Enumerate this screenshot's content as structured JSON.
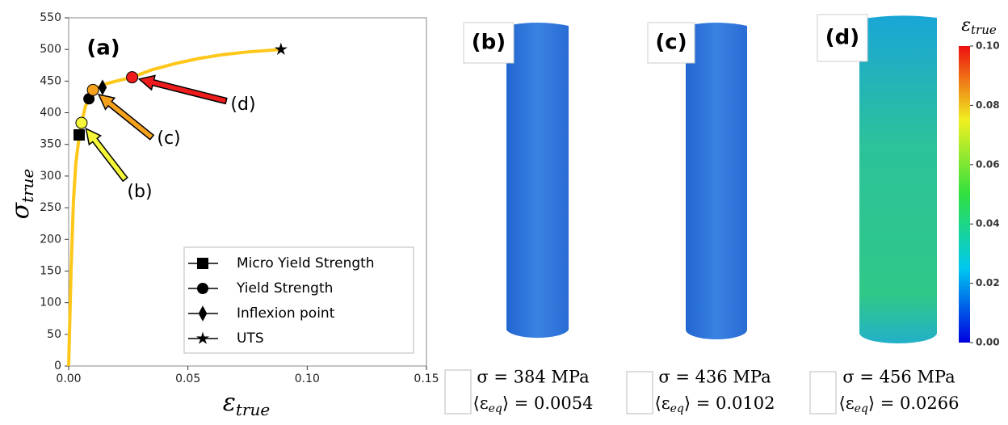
{
  "chart_data": {
    "type": "line",
    "panel_label": "(a)",
    "y_label": {
      "symbol": "σ",
      "subscript": "true"
    },
    "x_label": {
      "symbol": "ε",
      "subscript": "true"
    },
    "xlim": [
      0,
      0.15
    ],
    "xticks": [
      {
        "value": 0,
        "label": "0.00"
      },
      {
        "value": 0.05,
        "label": "0.05"
      },
      {
        "value": 0.1,
        "label": "0.10"
      },
      {
        "value": 0.15,
        "label": "0.15"
      }
    ],
    "ylim": [
      0,
      550
    ],
    "yticks": [
      0,
      50,
      100,
      150,
      200,
      250,
      300,
      350,
      400,
      450,
      500,
      550
    ],
    "curve": {
      "color": "#ffc71a",
      "x": [
        0,
        0.001,
        0.002,
        0.003,
        0.004,
        0.005,
        0.0054,
        0.007,
        0.0102,
        0.015,
        0.02,
        0.0266,
        0.035,
        0.045,
        0.055,
        0.065,
        0.075,
        0.089
      ],
      "y": [
        0,
        150,
        260,
        320,
        350,
        372,
        384,
        410,
        436,
        445,
        450,
        456,
        468,
        478,
        486,
        492,
        496,
        500
      ]
    },
    "markers": [
      {
        "name": "Micro Yield Strength",
        "shape": "square",
        "x": 0.0044,
        "y": 365
      },
      {
        "name": "Yield Strength",
        "shape": "circle",
        "x": 0.0085,
        "y": 422
      },
      {
        "name": "Inflexion point",
        "shape": "diamond",
        "x": 0.0142,
        "y": 440
      },
      {
        "name": "UTS",
        "shape": "star",
        "x": 0.089,
        "y": 500
      }
    ],
    "points": [
      {
        "label": "(b)",
        "color": "#f5f53a",
        "x": 0.0054,
        "y": 384
      },
      {
        "label": "(c)",
        "color": "#f5a11e",
        "x": 0.0102,
        "y": 436
      },
      {
        "label": "(d)",
        "color": "#ee1c1c",
        "x": 0.0266,
        "y": 456
      }
    ]
  },
  "panels": [
    {
      "label": "(b)",
      "stress": "σ = 384 MPa",
      "strain": [
        "⟨ε",
        "eq",
        "⟩ = 0.0054"
      ]
    },
    {
      "label": "(c)",
      "stress": "σ = 436 MPa",
      "strain": [
        "⟨ε",
        "eq",
        "⟩ = 0.0102"
      ]
    },
    {
      "label": "(d)",
      "stress": "σ = 456 MPa",
      "strain": [
        "⟨ε",
        "eq",
        "⟩ = 0.0266"
      ]
    }
  ],
  "colorbar": {
    "title": {
      "symbol": "ε",
      "subscript": "true"
    },
    "lim": [
      0,
      0.1
    ],
    "ticks": [
      {
        "value": 0,
        "label": "0.00"
      },
      {
        "value": 0.02,
        "label": "0.02"
      },
      {
        "value": 0.04,
        "label": "0.04"
      },
      {
        "value": 0.06,
        "label": "0.06"
      },
      {
        "value": 0.08,
        "label": "0.08"
      },
      {
        "value": 0.1,
        "label": "0.10"
      }
    ]
  }
}
